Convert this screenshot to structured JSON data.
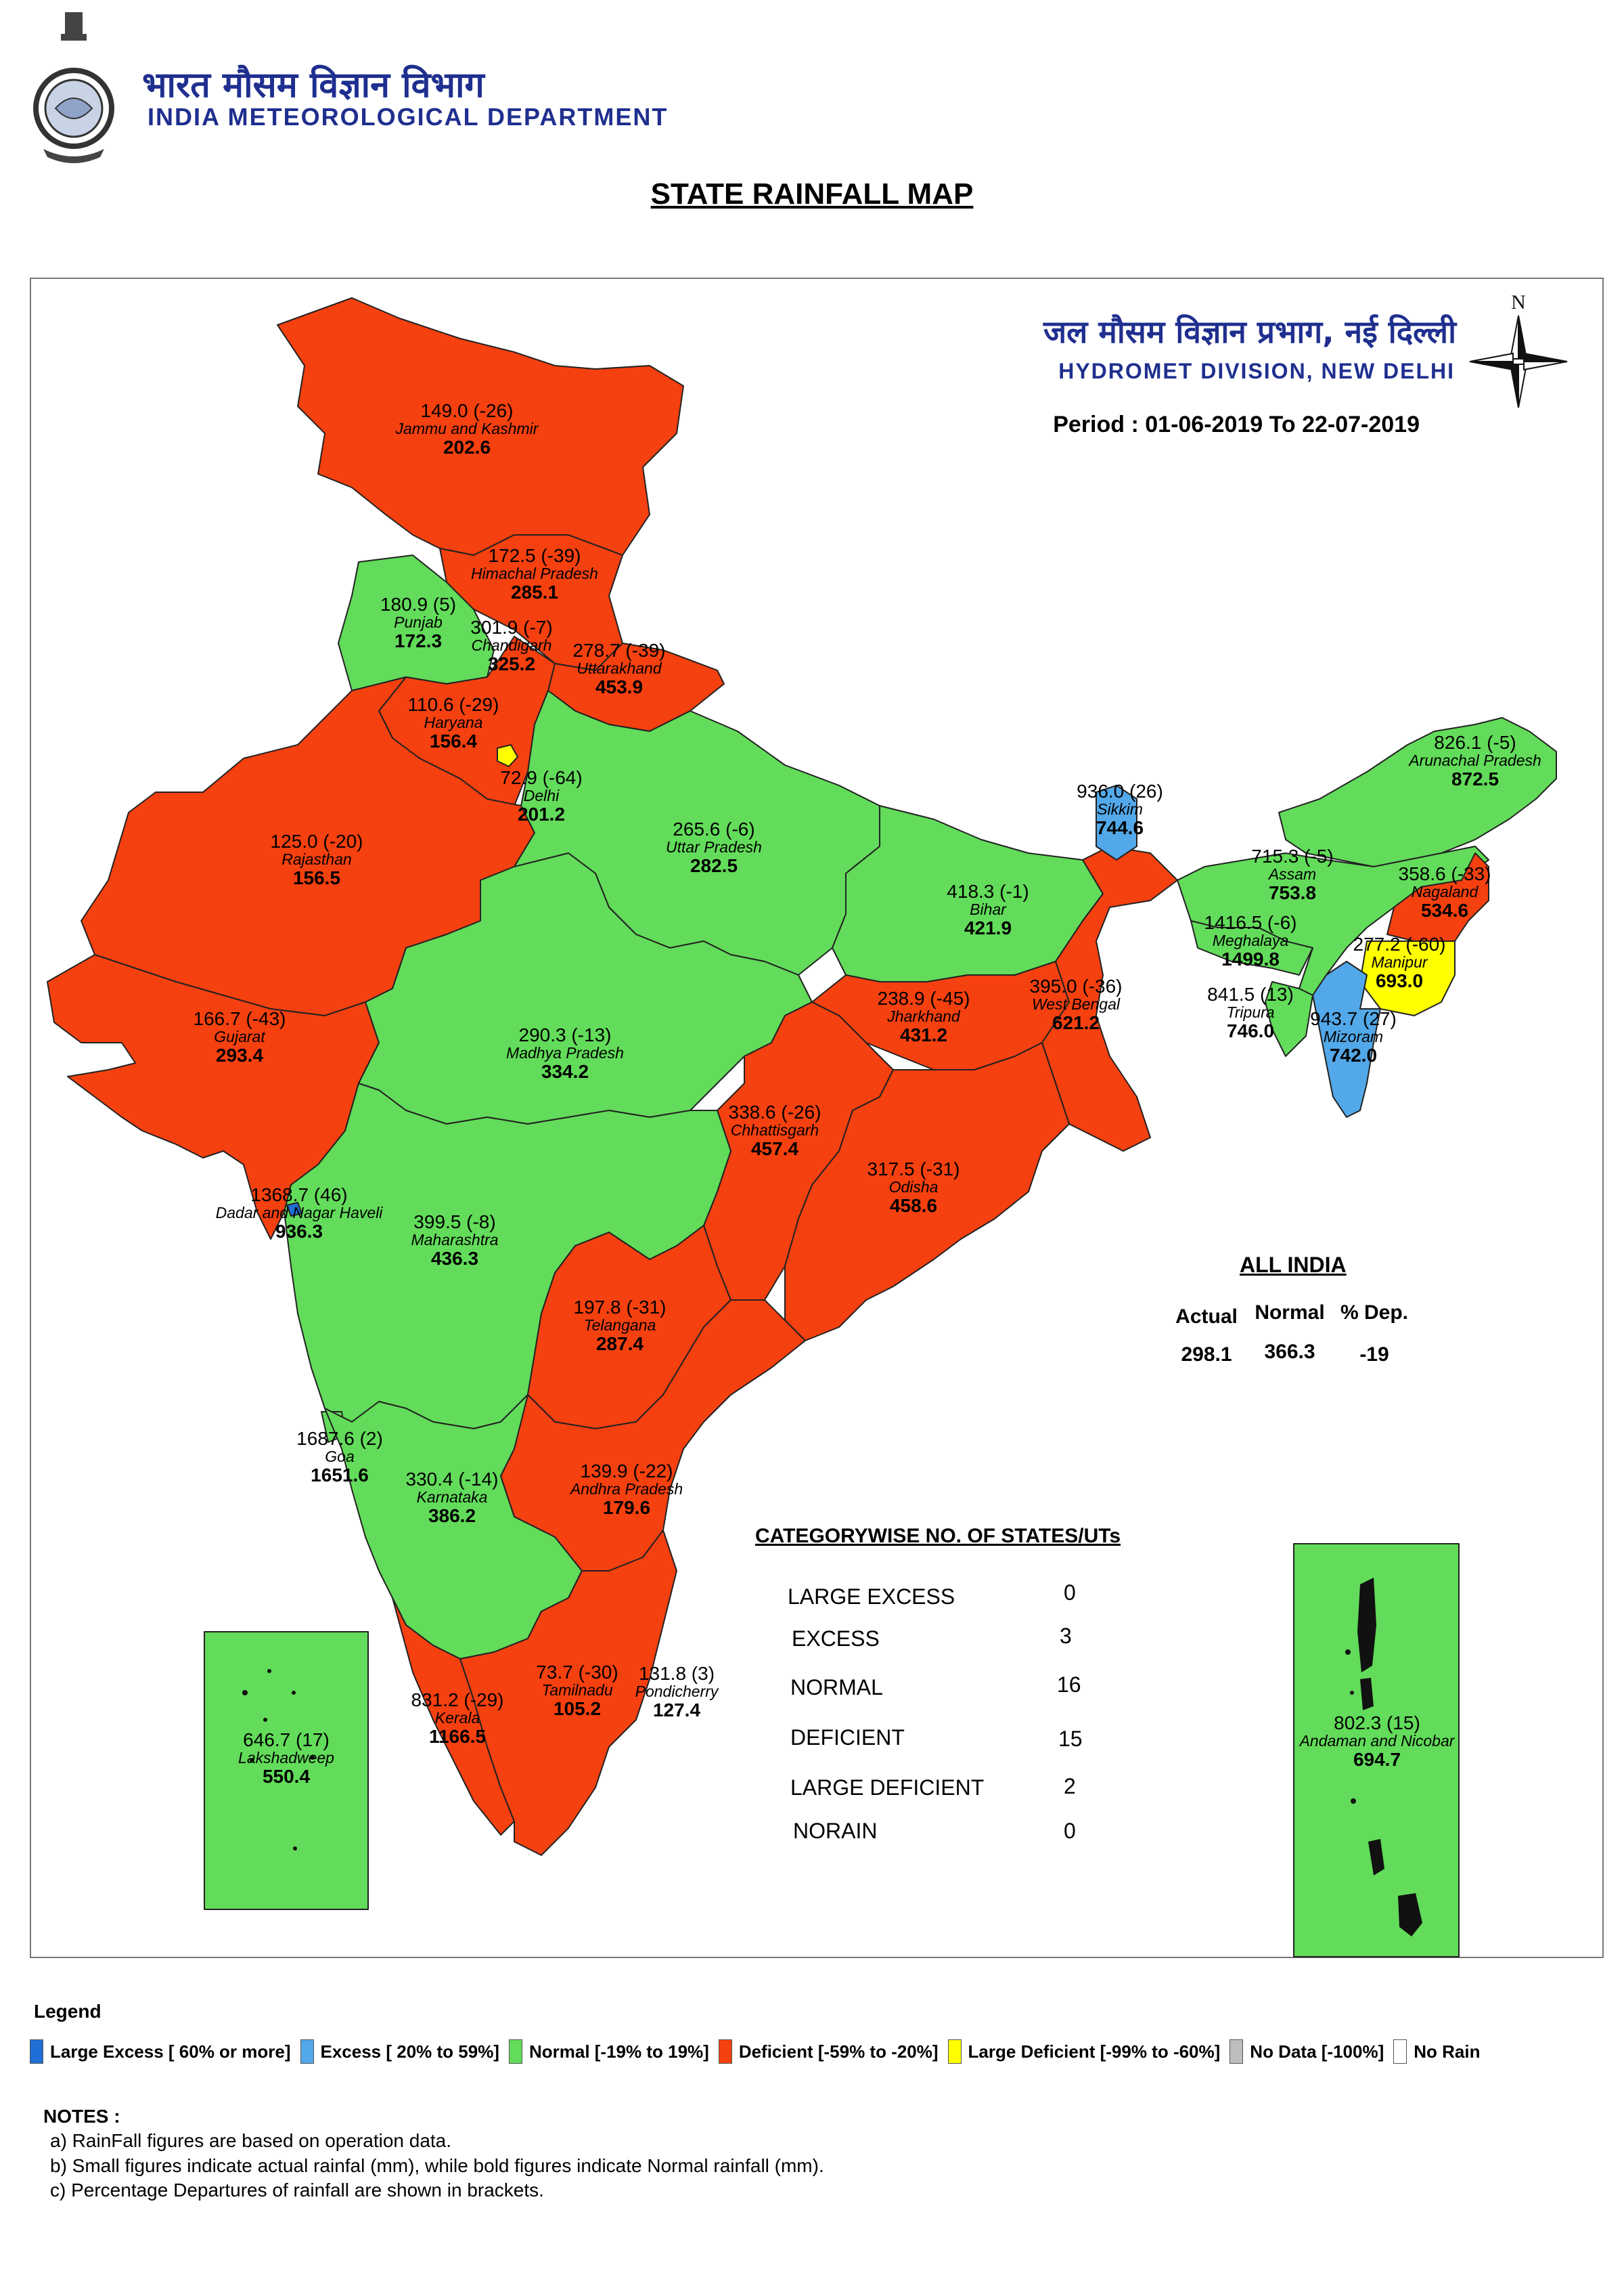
{
  "header": {
    "dept_hindi": "भारत मौसम विज्ञान विभाग",
    "dept_english": "INDIA METEOROLOGICAL DEPARTMENT",
    "map_title": "STATE RAINFALL MAP",
    "division_hindi": "जल मौसम विज्ञान प्रभाग, नई दिल्ली",
    "division_english": "HYDROMET DIVISION, NEW DELHI",
    "period": "Period : 01-06-2019 To 22-07-2019",
    "compass_north": "N"
  },
  "colors": {
    "large_excess": "#1f6fd6",
    "excess": "#52a8e8",
    "normal": "#62dc5a",
    "deficient": "#f5400f",
    "large_deficient": "#ffff00",
    "no_data": "#bdbdbd",
    "no_rain": "#ffffff",
    "title_blue": "#1f2f8f"
  },
  "states": [
    {
      "name": "Jammu and Kashmir",
      "actual": "149.0 (-26)",
      "normal": "202.6"
    },
    {
      "name": "Himachal Pradesh",
      "actual": "172.5 (-39)",
      "normal": "285.1"
    },
    {
      "name": "Punjab",
      "actual": "180.9 (5)",
      "normal": "172.3"
    },
    {
      "name": "Chandigarh",
      "actual": "301.9 (-7)",
      "normal": "325.2"
    },
    {
      "name": "Uttarakhand",
      "actual": "278.7 (-39)",
      "normal": "453.9"
    },
    {
      "name": "Haryana",
      "actual": "110.6 (-29)",
      "normal": "156.4"
    },
    {
      "name": "Delhi",
      "actual": "72.9 (-64)",
      "normal": "201.2"
    },
    {
      "name": "Rajasthan",
      "actual": "125.0 (-20)",
      "normal": "156.5"
    },
    {
      "name": "Uttar Pradesh",
      "actual": "265.6 (-6)",
      "normal": "282.5"
    },
    {
      "name": "Bihar",
      "actual": "418.3 (-1)",
      "normal": "421.9"
    },
    {
      "name": "Sikkim",
      "actual": "936.0 (26)",
      "normal": "744.6"
    },
    {
      "name": "Arunachal Pradesh",
      "actual": "826.1 (-5)",
      "normal": "872.5"
    },
    {
      "name": "Assam",
      "actual": "715.3 (-5)",
      "normal": "753.8"
    },
    {
      "name": "Nagaland",
      "actual": "358.6 (-33)",
      "normal": "534.6"
    },
    {
      "name": "Meghalaya",
      "actual": "1416.5 (-6)",
      "normal": "1499.8"
    },
    {
      "name": "Manipur",
      "actual": "277.2 (-60)",
      "normal": "693.0"
    },
    {
      "name": "Tripura",
      "actual": "841.5 (13)",
      "normal": "746.0"
    },
    {
      "name": "Mizoram",
      "actual": "943.7 (27)",
      "normal": "742.0"
    },
    {
      "name": "West Bengal",
      "actual": "395.0 (-36)",
      "normal": "621.2"
    },
    {
      "name": "Jharkhand",
      "actual": "238.9 (-45)",
      "normal": "431.2"
    },
    {
      "name": "Gujarat",
      "actual": "166.7 (-43)",
      "normal": "293.4"
    },
    {
      "name": "Madhya Pradesh",
      "actual": "290.3 (-13)",
      "normal": "334.2"
    },
    {
      "name": "Chhattisgarh",
      "actual": "338.6 (-26)",
      "normal": "457.4"
    },
    {
      "name": "Odisha",
      "actual": "317.5 (-31)",
      "normal": "458.6"
    },
    {
      "name": "Dadar and Nagar Haveli",
      "actual": "1368.7 (46)",
      "normal": "936.3"
    },
    {
      "name": "Maharashtra",
      "actual": "399.5 (-8)",
      "normal": "436.3"
    },
    {
      "name": "Telangana",
      "actual": "197.8 (-31)",
      "normal": "287.4"
    },
    {
      "name": "Goa",
      "actual": "1687.6 (2)",
      "normal": "1651.6"
    },
    {
      "name": "Karnataka",
      "actual": "330.4 (-14)",
      "normal": "386.2"
    },
    {
      "name": "Andhra Pradesh",
      "actual": "139.9 (-22)",
      "normal": "179.6"
    },
    {
      "name": "Tamilnadu",
      "actual": "73.7 (-30)",
      "normal": "105.2"
    },
    {
      "name": "Pondicherry",
      "actual": "131.8 (3)",
      "normal": "127.4"
    },
    {
      "name": "Kerala",
      "actual": "831.2 (-29)",
      "normal": "1166.5"
    },
    {
      "name": "Lakshadweep",
      "actual": "646.7 (17)",
      "normal": "550.4"
    },
    {
      "name": "Andaman and Nicobar",
      "actual": "802.3 (15)",
      "normal": "694.7"
    }
  ],
  "all_india": {
    "title": "ALL INDIA",
    "headers": [
      "Actual",
      "Normal",
      "% Dep."
    ],
    "values": [
      "298.1",
      "366.3",
      "-19"
    ]
  },
  "categories": {
    "title": "CATEGORYWISE NO. OF STATES/UTs",
    "rows": [
      {
        "label": "LARGE EXCESS",
        "count": "0"
      },
      {
        "label": "EXCESS",
        "count": "3"
      },
      {
        "label": "NORMAL",
        "count": "16"
      },
      {
        "label": "DEFICIENT",
        "count": "15"
      },
      {
        "label": "LARGE DEFICIENT",
        "count": "2"
      },
      {
        "label": "NORAIN",
        "count": "0"
      }
    ]
  },
  "legend": {
    "title": "Legend",
    "items": [
      {
        "label": "Large Excess [ 60% or more]",
        "color": "#1f6fd6"
      },
      {
        "label": "Excess [ 20% to 59%]",
        "color": "#52a8e8"
      },
      {
        "label": "Normal [-19% to 19%]",
        "color": "#62dc5a"
      },
      {
        "label": "Deficient [-59% to -20%]",
        "color": "#f5400f"
      },
      {
        "label": "Large Deficient [-99% to -60%]",
        "color": "#ffff00"
      },
      {
        "label": "No Data  [-100%]",
        "color": "#bdbdbd"
      },
      {
        "label": "No Rain",
        "color": "#ffffff"
      }
    ]
  },
  "notes": {
    "title": "NOTES :",
    "lines": [
      "a) RainFall figures are based on operation data.",
      "b) Small figures indicate actual rainfal (mm), while bold figures indicate Normal rainfall (mm).",
      "c) Percentage Departures of rainfall are shown in brackets."
    ]
  }
}
